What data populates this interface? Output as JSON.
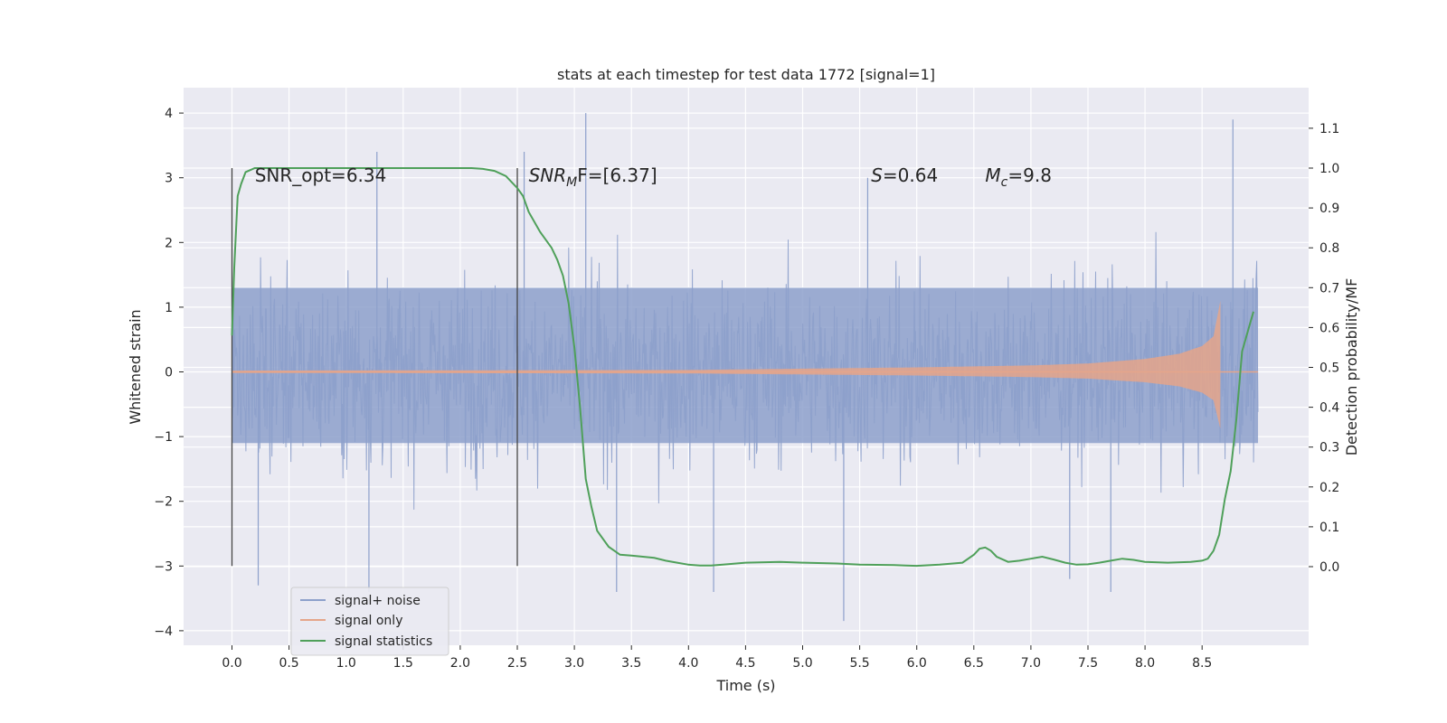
{
  "chart_data": {
    "type": "line",
    "title": "stats at each timestep for test data 1772 [signal=1]",
    "xlabel": "Time (s)",
    "ylabel": "Whitened strain",
    "y2label": "Detection probability/MF",
    "xlim": [
      -0.43,
      9.43
    ],
    "ylim": [
      -4.2,
      4.4
    ],
    "y2lim": [
      -0.195,
      1.205
    ],
    "xticks": [
      0.0,
      0.5,
      1.0,
      1.5,
      2.0,
      2.5,
      3.0,
      3.5,
      4.0,
      4.5,
      5.0,
      5.5,
      6.0,
      6.5,
      7.0,
      7.5,
      8.0,
      8.5
    ],
    "xtick_labels": [
      "0.0",
      "0.5",
      "1.0",
      "1.5",
      "2.0",
      "2.5",
      "3.0",
      "3.5",
      "4.0",
      "4.5",
      "5.0",
      "5.5",
      "6.0",
      "6.5",
      "7.0",
      "7.5",
      "8.0",
      "8.5"
    ],
    "yticks": [
      4,
      3,
      2,
      1,
      0,
      -1,
      -2,
      -3,
      -4
    ],
    "ytick_labels": [
      "4",
      "3",
      "2",
      "1",
      "0",
      "−1",
      "−2",
      "−3",
      "−4"
    ],
    "y2ticks": [
      1.1,
      1.0,
      0.9,
      0.8,
      0.7,
      0.6,
      0.5,
      0.4,
      0.3,
      0.2,
      0.1,
      0.0
    ],
    "y2tick_labels": [
      "1.1",
      "1.0",
      "0.9",
      "0.8",
      "0.7",
      "0.6",
      "0.5",
      "0.4",
      "0.3",
      "0.2",
      "0.1",
      "0.0"
    ],
    "grid": true,
    "legend_position": "lower-left",
    "series": [
      {
        "name": "signal+ noise",
        "color": "#8da0cb",
        "axis": "left",
        "x_range": [
          0.0,
          8.99
        ],
        "typical_range": [
          -1.1,
          1.3
        ],
        "extreme_range": [
          -3.9,
          4.0
        ],
        "peaks": [
          {
            "x": 3.1,
            "y": 4.0
          },
          {
            "x": 8.77,
            "y": 3.9
          },
          {
            "x": 5.36,
            "y": -3.85
          },
          {
            "x": 1.2,
            "y": -3.4
          },
          {
            "x": 0.23,
            "y": -3.3
          },
          {
            "x": 3.37,
            "y": -3.4
          },
          {
            "x": 4.22,
            "y": -3.4
          },
          {
            "x": 7.7,
            "y": -3.4
          },
          {
            "x": 7.34,
            "y": -3.2
          },
          {
            "x": 1.27,
            "y": 3.4
          },
          {
            "x": 2.56,
            "y": 3.4
          },
          {
            "x": 5.57,
            "y": 3.0
          }
        ]
      },
      {
        "name": "signal only",
        "color": "#e5a58a",
        "axis": "left",
        "description_envelope": [
          {
            "x": 0.0,
            "a": 0.02
          },
          {
            "x": 4.0,
            "a": 0.03
          },
          {
            "x": 6.0,
            "a": 0.07
          },
          {
            "x": 7.0,
            "a": 0.1
          },
          {
            "x": 7.5,
            "a": 0.13
          },
          {
            "x": 8.0,
            "a": 0.2
          },
          {
            "x": 8.3,
            "a": 0.28
          },
          {
            "x": 8.5,
            "a": 0.4
          },
          {
            "x": 8.6,
            "a": 0.55
          },
          {
            "x": 8.66,
            "a": 1.1
          }
        ]
      },
      {
        "name": "signal statistics",
        "color": "#4fa05a",
        "axis": "right",
        "x": [
          0.0,
          0.02,
          0.05,
          0.08,
          0.12,
          0.16,
          0.2,
          0.3,
          0.5,
          1.0,
          1.5,
          2.0,
          2.1,
          2.2,
          2.3,
          2.4,
          2.5,
          2.55,
          2.6,
          2.7,
          2.8,
          2.85,
          2.9,
          2.95,
          3.0,
          3.05,
          3.1,
          3.15,
          3.2,
          3.3,
          3.4,
          3.5,
          3.6,
          3.7,
          3.8,
          3.9,
          4.0,
          4.1,
          4.2,
          4.3,
          4.5,
          4.8,
          5.0,
          5.3,
          5.5,
          5.8,
          5.9,
          6.0,
          6.2,
          6.4,
          6.5,
          6.55,
          6.6,
          6.65,
          6.7,
          6.8,
          6.9,
          7.0,
          7.1,
          7.2,
          7.3,
          7.4,
          7.5,
          7.6,
          7.7,
          7.8,
          7.9,
          8.0,
          8.2,
          8.4,
          8.5,
          8.55,
          8.6,
          8.65,
          8.7,
          8.75,
          8.8,
          8.85,
          8.9,
          8.95
        ],
        "y": [
          0.58,
          0.75,
          0.93,
          0.96,
          0.99,
          0.995,
          1.0,
          1.0,
          1.0,
          1.0,
          1.0,
          1.0,
          1.0,
          0.998,
          0.993,
          0.98,
          0.95,
          0.93,
          0.89,
          0.84,
          0.8,
          0.77,
          0.73,
          0.66,
          0.55,
          0.4,
          0.22,
          0.15,
          0.09,
          0.05,
          0.03,
          0.028,
          0.025,
          0.022,
          0.015,
          0.01,
          0.005,
          0.003,
          0.003,
          0.005,
          0.01,
          0.012,
          0.01,
          0.008,
          0.005,
          0.004,
          0.003,
          0.002,
          0.005,
          0.01,
          0.03,
          0.045,
          0.048,
          0.04,
          0.025,
          0.012,
          0.015,
          0.02,
          0.025,
          0.018,
          0.01,
          0.005,
          0.006,
          0.01,
          0.015,
          0.02,
          0.017,
          0.012,
          0.01,
          0.012,
          0.015,
          0.02,
          0.04,
          0.08,
          0.17,
          0.24,
          0.37,
          0.54,
          0.59,
          0.64
        ]
      }
    ],
    "vertical_lines": [
      {
        "x": 0.0,
        "ymin": -3.0,
        "ymax": 3.15
      },
      {
        "x": 2.5,
        "ymin": -3.0,
        "ymax": 3.15
      }
    ],
    "annotations": [
      {
        "id": "snr_opt",
        "x": 0.2,
        "y": 3.05,
        "text": "SNR_opt=6.34",
        "italic": false
      },
      {
        "id": "snr_mf",
        "x": 2.6,
        "y": 3.05,
        "text": "SNR",
        "sub": "M",
        "rest": "F=[6.37]",
        "italic": true
      },
      {
        "id": "s_value",
        "x": 5.6,
        "y": 3.05,
        "text": "S",
        "rest": "=0.64",
        "italic": true
      },
      {
        "id": "mc_value",
        "x": 6.6,
        "y": 3.05,
        "text": "M",
        "sub": "c",
        "rest": "=9.8",
        "italic": true
      }
    ],
    "legend": {
      "items": [
        "signal+ noise",
        "signal only",
        "signal statistics"
      ]
    }
  }
}
